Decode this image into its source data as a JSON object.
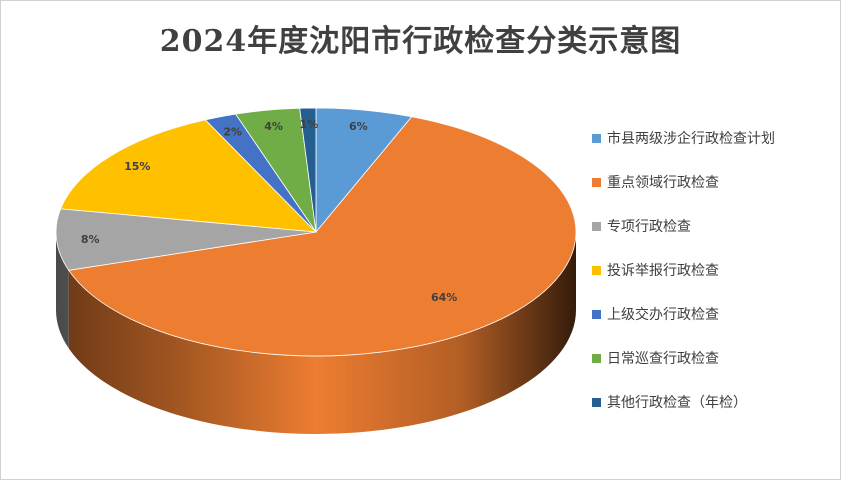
{
  "chart_data": {
    "type": "pie",
    "title": "2024年度沈阳市行政检查分类示意图",
    "legend_position": "right",
    "slices": [
      {
        "label": "市县两级涉企行政检查计划",
        "value": 6,
        "data_label": "6%",
        "color": "#5b9bd5"
      },
      {
        "label": "重点领域行政检查",
        "value": 64,
        "data_label": "64%",
        "color": "#ed7d31"
      },
      {
        "label": "专项行政检查",
        "value": 8,
        "data_label": "8%",
        "color": "#a5a5a5"
      },
      {
        "label": "投诉举报行政检查",
        "value": 15,
        "data_label": "15%",
        "color": "#ffc000"
      },
      {
        "label": "上级交办行政检查",
        "value": 2,
        "data_label": "2%",
        "color": "#4472c4"
      },
      {
        "label": "日常巡查行政检查",
        "value": 4,
        "data_label": "4%",
        "color": "#70ad47"
      },
      {
        "label": "其他行政检查（年检）",
        "value": 1,
        "data_label": "1%",
        "color": "#255e91"
      }
    ]
  }
}
